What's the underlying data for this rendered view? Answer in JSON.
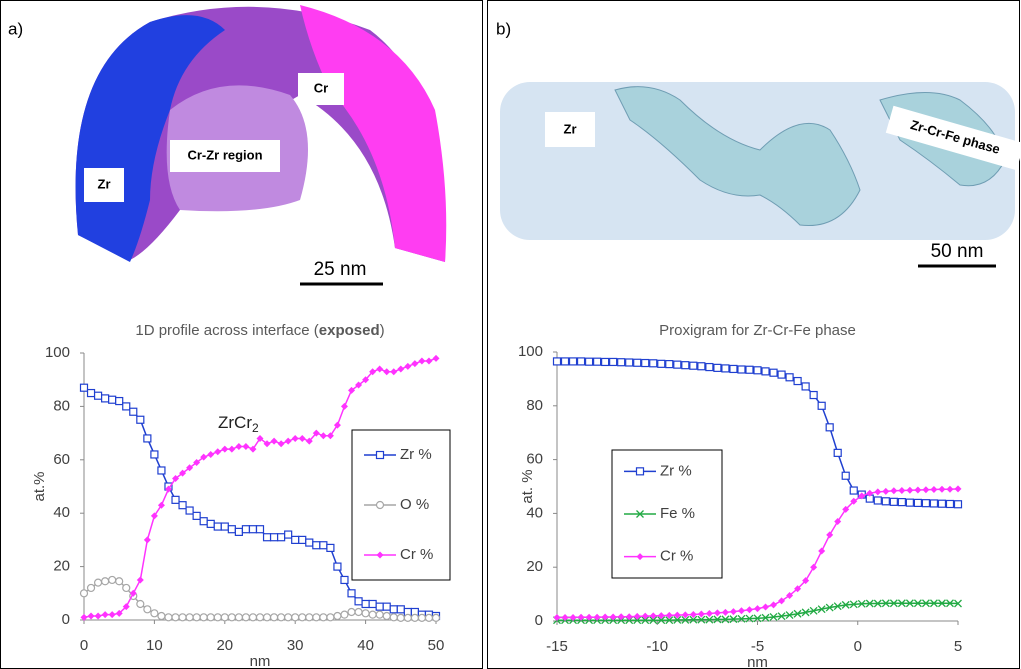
{
  "panels": [
    {
      "label": "a)",
      "image_labels": [
        "Zr",
        "Cr-Zr region",
        "Cr"
      ],
      "scale_bar": "25 nm"
    },
    {
      "label": "b)",
      "image_labels": [
        "Zr",
        "Zr-Cr-Fe phase"
      ],
      "scale_bar": "50 nm"
    }
  ],
  "chart_data": [
    {
      "type": "line",
      "title": [
        {
          "text": "1D profile across interface ("
        },
        {
          "text": "exposed",
          "bold": true
        },
        {
          "text": ")"
        }
      ],
      "annotation": {
        "text": "ZrCr",
        "subscript": "2"
      },
      "xlabel": "nm",
      "ylabel": "at.%",
      "xlim": [
        0,
        50
      ],
      "xticks": [
        0,
        10,
        20,
        30,
        40,
        50
      ],
      "ylim": [
        0,
        100
      ],
      "yticks": [
        0,
        20,
        40,
        60,
        80,
        100
      ],
      "legend": "right",
      "x": [
        0,
        1,
        2,
        3,
        4,
        5,
        6,
        7,
        8,
        9,
        10,
        11,
        12,
        13,
        14,
        15,
        16,
        17,
        18,
        19,
        20,
        21,
        22,
        23,
        24,
        25,
        26,
        27,
        28,
        29,
        30,
        31,
        32,
        33,
        34,
        35,
        36,
        37,
        38,
        39,
        40,
        41,
        42,
        43,
        44,
        45,
        46,
        47,
        48,
        49,
        50
      ],
      "series": [
        {
          "name": "Zr %",
          "color": "#1f3fd0",
          "marker": "square",
          "values": [
            87,
            85,
            84,
            83,
            82.5,
            82,
            80,
            78,
            75,
            68,
            62,
            56,
            50,
            45,
            43,
            41,
            39,
            37,
            36,
            35,
            35,
            34,
            33,
            34,
            34,
            34,
            31,
            31,
            31,
            32,
            30,
            30,
            29,
            28,
            28,
            27,
            20,
            15,
            10,
            7,
            6,
            6,
            5,
            5,
            4,
            4,
            3,
            3,
            2,
            2,
            1.5
          ]
        },
        {
          "name": "O %",
          "color": "#a6a6a6",
          "marker": "circle",
          "values": [
            10,
            12,
            14,
            14.5,
            15,
            14.5,
            12,
            9,
            6,
            4,
            2.5,
            1.5,
            1,
            1,
            1,
            1,
            1,
            1,
            1,
            1,
            1,
            1,
            1,
            1,
            1,
            1,
            1,
            1,
            1,
            1,
            1,
            1,
            1,
            1,
            1,
            1,
            1.5,
            2,
            3,
            3,
            2.5,
            2,
            2,
            1.5,
            1,
            0.8,
            0.8,
            0.8,
            0.8,
            0.8,
            0.8
          ]
        },
        {
          "name": "Cr %",
          "color": "#ff33ff",
          "marker": "diamond",
          "values": [
            1,
            1.5,
            1.5,
            2,
            2,
            2.5,
            5,
            10,
            15,
            30,
            39,
            43,
            49,
            53,
            55,
            57,
            59,
            61,
            62,
            63,
            64,
            64,
            65,
            65,
            64,
            68,
            66,
            67,
            66,
            67,
            68,
            68,
            67,
            70,
            69,
            69,
            73,
            80,
            86,
            88,
            90,
            93,
            94,
            93,
            93,
            94,
            95,
            96,
            97,
            97,
            98
          ]
        }
      ]
    },
    {
      "type": "line",
      "title": [
        {
          "text": "Proxigram for Zr-Cr-Fe phase"
        }
      ],
      "xlabel": "nm",
      "ylabel": "at. %",
      "xlim": [
        -15,
        5
      ],
      "xticks": [
        -15,
        -10,
        -5,
        0,
        5
      ],
      "ylim": [
        0,
        100
      ],
      "yticks": [
        0,
        20,
        40,
        60,
        80,
        100
      ],
      "legend": "left",
      "x": [
        -15,
        -14.6,
        -14.2,
        -13.8,
        -13.4,
        -13,
        -12.6,
        -12.2,
        -11.8,
        -11.4,
        -11,
        -10.6,
        -10.2,
        -9.8,
        -9.4,
        -9,
        -8.6,
        -8.2,
        -7.8,
        -7.4,
        -7,
        -6.6,
        -6.2,
        -5.8,
        -5.4,
        -5,
        -4.6,
        -4.2,
        -3.8,
        -3.4,
        -3,
        -2.6,
        -2.2,
        -1.8,
        -1.4,
        -1,
        -0.6,
        -0.2,
        0.2,
        0.6,
        1,
        1.4,
        1.8,
        2.2,
        2.6,
        3,
        3.4,
        3.8,
        4.2,
        4.6,
        5
      ],
      "series": [
        {
          "name": "Zr %",
          "color": "#1f3fd0",
          "marker": "square",
          "values": [
            96.5,
            96.5,
            96.5,
            96.5,
            96.4,
            96.4,
            96.3,
            96.3,
            96.2,
            96.1,
            96,
            95.9,
            95.8,
            95.6,
            95.5,
            95.3,
            95.1,
            94.9,
            94.7,
            94.4,
            94.1,
            93.9,
            93.7,
            93.5,
            93.4,
            93.2,
            92.8,
            92.3,
            91.6,
            90.6,
            89.2,
            87.2,
            84,
            80,
            72,
            62.5,
            54,
            48.5,
            47,
            45.5,
            44.8,
            44.5,
            44.3,
            44.2,
            44,
            43.9,
            43.8,
            43.7,
            43.6,
            43.5,
            43.4
          ]
        },
        {
          "name": "Fe %",
          "color": "#22aa44",
          "marker": "x",
          "values": [
            0.3,
            0.3,
            0.3,
            0.3,
            0.3,
            0.3,
            0.3,
            0.3,
            0.3,
            0.3,
            0.3,
            0.3,
            0.3,
            0.3,
            0.3,
            0.4,
            0.4,
            0.5,
            0.5,
            0.5,
            0.6,
            0.6,
            0.7,
            0.8,
            0.9,
            1,
            1.2,
            1.5,
            1.8,
            2.2,
            2.7,
            3.2,
            3.8,
            4.4,
            5,
            5.5,
            6,
            6.2,
            6.4,
            6.5,
            6.5,
            6.6,
            6.6,
            6.6,
            6.6,
            6.6,
            6.6,
            6.6,
            6.6,
            6.6,
            6.5
          ]
        },
        {
          "name": "Cr %",
          "color": "#ff33ff",
          "marker": "diamond",
          "values": [
            1.3,
            1.3,
            1.3,
            1.4,
            1.4,
            1.4,
            1.5,
            1.5,
            1.6,
            1.6,
            1.7,
            1.8,
            1.9,
            2,
            2.1,
            2.2,
            2.3,
            2.4,
            2.6,
            2.8,
            3,
            3.2,
            3.5,
            3.8,
            4.2,
            4.6,
            5.2,
            6,
            7.5,
            9.5,
            12,
            15,
            20,
            26,
            32,
            37,
            41.5,
            44.5,
            46.5,
            47.5,
            48,
            48.2,
            48.4,
            48.5,
            48.6,
            48.7,
            48.8,
            48.9,
            49,
            49,
            49.1
          ]
        }
      ]
    }
  ]
}
